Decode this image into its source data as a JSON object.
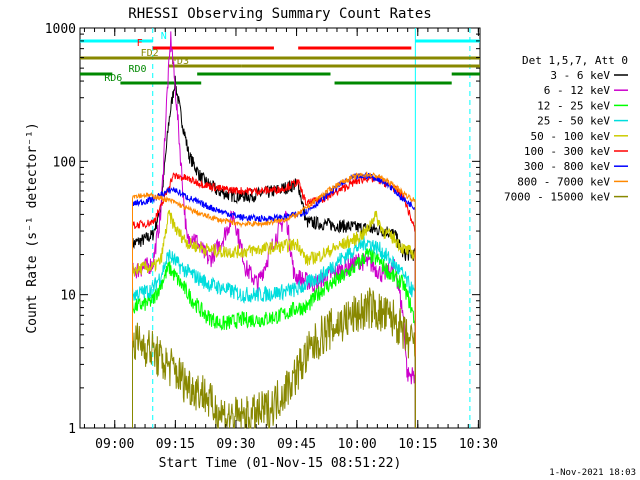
{
  "chart_data": {
    "type": "line",
    "title": "RHESSI Observing Summary Count Rates",
    "xlabel": "Start Time (01-Nov-15 08:51:22)",
    "ylabel": "Count Rate (s⁻¹ detector⁻¹)",
    "yscale": "log",
    "xlim": [
      0,
      99
    ],
    "ylim": [
      1,
      1000
    ],
    "x_ticks": [
      {
        "value": 8.6,
        "label": "09:00"
      },
      {
        "value": 23.6,
        "label": "09:15"
      },
      {
        "value": 38.6,
        "label": "09:30"
      },
      {
        "value": 53.6,
        "label": "09:45"
      },
      {
        "value": 68.6,
        "label": "10:00"
      },
      {
        "value": 83.6,
        "label": "10:15"
      },
      {
        "value": 98.6,
        "label": "10:30"
      }
    ],
    "y_ticks": [
      {
        "value": 1,
        "label": "1"
      },
      {
        "value": 10,
        "label": "10"
      },
      {
        "value": 100,
        "label": "100"
      },
      {
        "value": 1000,
        "label": "1000"
      }
    ],
    "legend": {
      "position": "right",
      "header": "Det 1,5,7, Att 0"
    },
    "series": [
      {
        "name": "3 - 6 keV",
        "color": "#000000",
        "noise": 0.05,
        "points": [
          [
            13,
            24
          ],
          [
            16,
            26
          ],
          [
            18,
            28
          ],
          [
            20,
            45
          ],
          [
            22,
            200
          ],
          [
            23.5,
            400
          ],
          [
            25,
            220
          ],
          [
            27,
            110
          ],
          [
            30,
            75
          ],
          [
            34,
            60
          ],
          [
            38,
            55
          ],
          [
            42,
            55
          ],
          [
            46,
            58
          ],
          [
            50,
            62
          ],
          [
            54,
            68
          ],
          [
            56,
            35
          ],
          [
            60,
            34
          ],
          [
            64,
            33
          ],
          [
            68,
            32
          ],
          [
            72,
            31
          ],
          [
            76,
            30
          ],
          [
            78,
            28
          ],
          [
            80,
            20
          ],
          [
            83,
            20
          ]
        ]
      },
      {
        "name": "6 - 12 keV",
        "color": "#cc00cc",
        "noise": 0.07,
        "points": [
          [
            13,
            15
          ],
          [
            16,
            16
          ],
          [
            18,
            17
          ],
          [
            20,
            40
          ],
          [
            21.5,
            300
          ],
          [
            22.5,
            850
          ],
          [
            24,
            250
          ],
          [
            25.5,
            60
          ],
          [
            26.5,
            25
          ],
          [
            28,
            28
          ],
          [
            30,
            22
          ],
          [
            32,
            18
          ],
          [
            35,
            25
          ],
          [
            38,
            40
          ],
          [
            41,
            16
          ],
          [
            44,
            12
          ],
          [
            48,
            25
          ],
          [
            51,
            40
          ],
          [
            53,
            14
          ],
          [
            55,
            13
          ],
          [
            58,
            12
          ],
          [
            62,
            14
          ],
          [
            66,
            16
          ],
          [
            69,
            18
          ],
          [
            72,
            17
          ],
          [
            75,
            14
          ],
          [
            78,
            16
          ],
          [
            80,
            7
          ],
          [
            81,
            2.5
          ],
          [
            82,
            2.5
          ],
          [
            83,
            2.5
          ]
        ]
      },
      {
        "name": "12 - 25 keV",
        "color": "#00ff00",
        "noise": 0.06,
        "points": [
          [
            13,
            8
          ],
          [
            16,
            8.5
          ],
          [
            18,
            9
          ],
          [
            20,
            12
          ],
          [
            22,
            16
          ],
          [
            25,
            12
          ],
          [
            28,
            9
          ],
          [
            31,
            7
          ],
          [
            35,
            6
          ],
          [
            40,
            6.5
          ],
          [
            45,
            6.5
          ],
          [
            50,
            7
          ],
          [
            54,
            8
          ],
          [
            56,
            8
          ],
          [
            60,
            11
          ],
          [
            64,
            13
          ],
          [
            68,
            16
          ],
          [
            71,
            20
          ],
          [
            74,
            18
          ],
          [
            77,
            14
          ],
          [
            80,
            12
          ],
          [
            82,
            8
          ],
          [
            83,
            6
          ]
        ]
      },
      {
        "name": "25 - 50 keV",
        "color": "#00dddd",
        "noise": 0.06,
        "points": [
          [
            13,
            10
          ],
          [
            16,
            10.5
          ],
          [
            18,
            11
          ],
          [
            20,
            14
          ],
          [
            22,
            20
          ],
          [
            25,
            16
          ],
          [
            28,
            14
          ],
          [
            32,
            12
          ],
          [
            36,
            11
          ],
          [
            40,
            10
          ],
          [
            45,
            10
          ],
          [
            50,
            10.5
          ],
          [
            54,
            11
          ],
          [
            56,
            12
          ],
          [
            60,
            14
          ],
          [
            64,
            18
          ],
          [
            68,
            22
          ],
          [
            71,
            25
          ],
          [
            74,
            22
          ],
          [
            77,
            18
          ],
          [
            80,
            14
          ],
          [
            82,
            11
          ],
          [
            83,
            10
          ]
        ]
      },
      {
        "name": "50 - 100 keV",
        "color": "#cccc00",
        "noise": 0.05,
        "points": [
          [
            13,
            15
          ],
          [
            16,
            16
          ],
          [
            18,
            16
          ],
          [
            20,
            18
          ],
          [
            22,
            40
          ],
          [
            24,
            30
          ],
          [
            27,
            24
          ],
          [
            31,
            22
          ],
          [
            35,
            21
          ],
          [
            40,
            21
          ],
          [
            45,
            22
          ],
          [
            50,
            23
          ],
          [
            54,
            24
          ],
          [
            56,
            18
          ],
          [
            60,
            20
          ],
          [
            64,
            23
          ],
          [
            68,
            26
          ],
          [
            71,
            30
          ],
          [
            73,
            40
          ],
          [
            75,
            30
          ],
          [
            78,
            26
          ],
          [
            80,
            22
          ],
          [
            83,
            20
          ]
        ]
      },
      {
        "name": "100 - 300 keV",
        "color": "#ff0000",
        "noise": 0.03,
        "points": [
          [
            13,
            33
          ],
          [
            16,
            34
          ],
          [
            18,
            35
          ],
          [
            20,
            45
          ],
          [
            23,
            78
          ],
          [
            26,
            75
          ],
          [
            30,
            68
          ],
          [
            35,
            62
          ],
          [
            40,
            60
          ],
          [
            45,
            60
          ],
          [
            50,
            62
          ],
          [
            54,
            70
          ],
          [
            56,
            48
          ],
          [
            60,
            52
          ],
          [
            64,
            60
          ],
          [
            68,
            70
          ],
          [
            71,
            75
          ],
          [
            74,
            72
          ],
          [
            77,
            65
          ],
          [
            80,
            55
          ],
          [
            83,
            30
          ]
        ]
      },
      {
        "name": "300 - 800 keV",
        "color": "#0000ff",
        "noise": 0.025,
        "points": [
          [
            13,
            48
          ],
          [
            16,
            50
          ],
          [
            18,
            52
          ],
          [
            20,
            56
          ],
          [
            23,
            62
          ],
          [
            26,
            55
          ],
          [
            30,
            48
          ],
          [
            35,
            42
          ],
          [
            40,
            38
          ],
          [
            45,
            37
          ],
          [
            50,
            38
          ],
          [
            54,
            40
          ],
          [
            56,
            42
          ],
          [
            60,
            52
          ],
          [
            64,
            66
          ],
          [
            68,
            76
          ],
          [
            71,
            78
          ],
          [
            74,
            74
          ],
          [
            77,
            64
          ],
          [
            80,
            52
          ],
          [
            83,
            45
          ]
        ]
      },
      {
        "name": "800 - 7000 keV",
        "color": "#ff8800",
        "noise": 0.02,
        "points": [
          [
            13,
            55
          ],
          [
            16,
            56
          ],
          [
            18,
            55
          ],
          [
            20,
            53
          ],
          [
            23,
            50
          ],
          [
            26,
            45
          ],
          [
            30,
            40
          ],
          [
            35,
            36
          ],
          [
            40,
            34
          ],
          [
            45,
            34
          ],
          [
            50,
            36
          ],
          [
            54,
            40
          ],
          [
            56,
            45
          ],
          [
            60,
            56
          ],
          [
            64,
            68
          ],
          [
            68,
            77
          ],
          [
            71,
            80
          ],
          [
            74,
            77
          ],
          [
            77,
            68
          ],
          [
            80,
            58
          ],
          [
            83,
            50
          ]
        ]
      },
      {
        "name": "7000 - 15000 keV",
        "color": "#888800",
        "noise": 0.16,
        "points": [
          [
            13,
            4.5
          ],
          [
            16,
            4.2
          ],
          [
            18,
            3.8
          ],
          [
            20,
            3.2
          ],
          [
            23,
            2.8
          ],
          [
            26,
            2.2
          ],
          [
            28,
            2.0
          ],
          [
            31,
            1.8
          ],
          [
            33,
            1.4
          ],
          [
            37,
            1.2
          ],
          [
            42,
            1.2
          ],
          [
            47,
            1.4
          ],
          [
            50,
            1.8
          ],
          [
            53,
            2.4
          ],
          [
            56,
            3.5
          ],
          [
            60,
            5
          ],
          [
            64,
            6
          ],
          [
            68,
            7
          ],
          [
            72,
            8
          ],
          [
            75,
            7
          ],
          [
            78,
            6.5
          ],
          [
            80,
            5
          ],
          [
            83,
            4
          ]
        ]
      }
    ],
    "flag_bars": [
      {
        "label": "N",
        "color": "#00ffff",
        "segments": [
          [
            0,
            18
          ],
          [
            83,
            99
          ]
        ]
      },
      {
        "label": "F",
        "color": "#ff0000",
        "segments": [
          [
            18,
            48
          ],
          [
            54,
            82
          ]
        ]
      },
      {
        "label": "FD2",
        "color": "#888800",
        "segments": [
          [
            0,
            99
          ]
        ]
      },
      {
        "label": "FD3",
        "color": "#888800",
        "segments": [
          [
            22,
            40
          ],
          [
            40,
            99
          ]
        ]
      },
      {
        "label": "RD0",
        "color": "#008800",
        "segments": [
          [
            0,
            8
          ],
          [
            29,
            62
          ],
          [
            92,
            99
          ]
        ]
      },
      {
        "label": "RD6",
        "color": "#008800",
        "segments": [
          [
            10,
            30
          ],
          [
            63,
            92
          ]
        ]
      }
    ],
    "vlines": [
      {
        "value": 18.0,
        "color": "#00ffff",
        "style": "dashed"
      },
      {
        "value": 83.0,
        "color": "#00ffff",
        "style": "solid"
      },
      {
        "value": 96.5,
        "color": "#00ffff",
        "style": "dashed"
      }
    ],
    "stamp": "1-Nov-2021 18:03"
  }
}
